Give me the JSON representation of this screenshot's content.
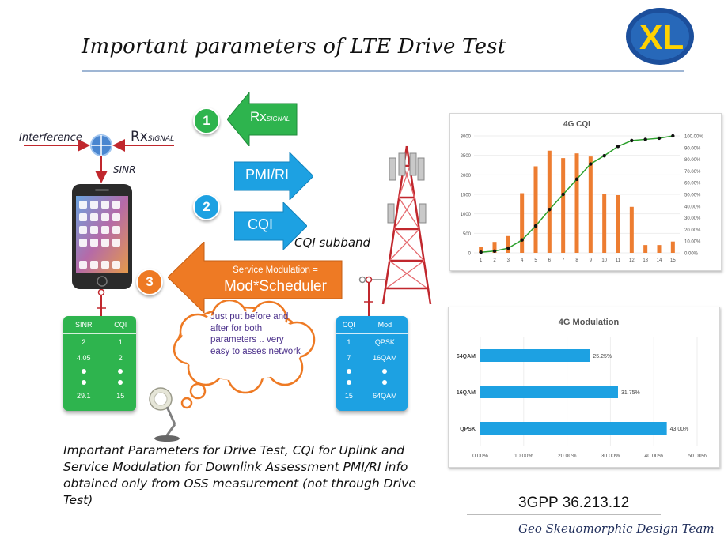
{
  "title": "Important parameters of LTE Drive Test",
  "logo_text": "XL",
  "signal_diagram": {
    "interference_label": "Interference",
    "rx_main": "Rx",
    "rx_sub": "SIGNAL",
    "sinr_label": "SINR"
  },
  "steps": {
    "step1": {
      "number": "1",
      "rx_main": "Rx",
      "rx_sub": "SIGNAL"
    },
    "step2": {
      "number": "2",
      "pmi_label": "PMI/RI",
      "cqi_label": "CQI",
      "cqi_subband": "CQI subband"
    },
    "step3": {
      "number": "3",
      "line1": "Service Modulation =",
      "line2": "Mod*Scheduler"
    }
  },
  "cloud_note": "Just put before and after for both parameters .. very easy to asses network",
  "sinr_card": {
    "headers": [
      "SINR",
      "CQI"
    ],
    "rows": [
      [
        "2",
        "1"
      ],
      [
        "4.05",
        "2"
      ]
    ],
    "last_row": [
      "29.1",
      "15"
    ]
  },
  "cqi_card": {
    "headers": [
      "CQI",
      "Mod"
    ],
    "rows": [
      [
        "1",
        "QPSK"
      ],
      [
        "7",
        "16QAM"
      ]
    ],
    "last_row": [
      "15",
      "64QAM"
    ]
  },
  "caption": "Important Parameters for Drive Test, CQI for Uplink and Service Modulation for Downlink Assessment PMI/RI info obtained only from OSS measurement (not through Drive Test)",
  "spec_ref": "3GPP 36.213.12",
  "team": "Geo Skeuomorphic Design Team",
  "colors": {
    "green": "#2eb44e",
    "blue": "#1da1e2",
    "orange": "#ee7a24",
    "bar_orange": "#ed7d31",
    "cumulative_line": "#2ca02c"
  },
  "chart_data": [
    {
      "type": "bar",
      "title": "4G CQI",
      "categories": [
        "1",
        "2",
        "3",
        "4",
        "5",
        "6",
        "7",
        "8",
        "9",
        "10",
        "11",
        "12",
        "13",
        "14",
        "15"
      ],
      "values": [
        150,
        280,
        430,
        1530,
        2220,
        2620,
        2430,
        2550,
        2470,
        1500,
        1480,
        1180,
        200,
        200,
        290
      ],
      "ylim": [
        0,
        3000
      ],
      "yticks": [
        "0",
        "500",
        "1000",
        "1500",
        "2000",
        "2500",
        "3000"
      ],
      "y2lim": [
        0,
        100
      ],
      "y2ticks": [
        "0.00%",
        "10.00%",
        "20.00%",
        "30.00%",
        "40.00%",
        "50.00%",
        "60.00%",
        "70.00%",
        "80.00%",
        "90.00%",
        "100.00%"
      ],
      "cumulative_percent": [
        0.5,
        1.5,
        4,
        11,
        23,
        37,
        50,
        63,
        76,
        83,
        91,
        96,
        97,
        98,
        100
      ]
    },
    {
      "type": "bar",
      "title": "4G Modulation",
      "categories": [
        "64QAM",
        "16QAM",
        "QPSK"
      ],
      "values": [
        25.25,
        31.75,
        43.0
      ],
      "data_labels": [
        "25.25%",
        "31.75%",
        "43.00%"
      ],
      "xlim": [
        0,
        50
      ],
      "xticks": [
        "0.00%",
        "10.00%",
        "20.00%",
        "30.00%",
        "40.00%",
        "50.00%"
      ],
      "orientation": "horizontal"
    }
  ]
}
